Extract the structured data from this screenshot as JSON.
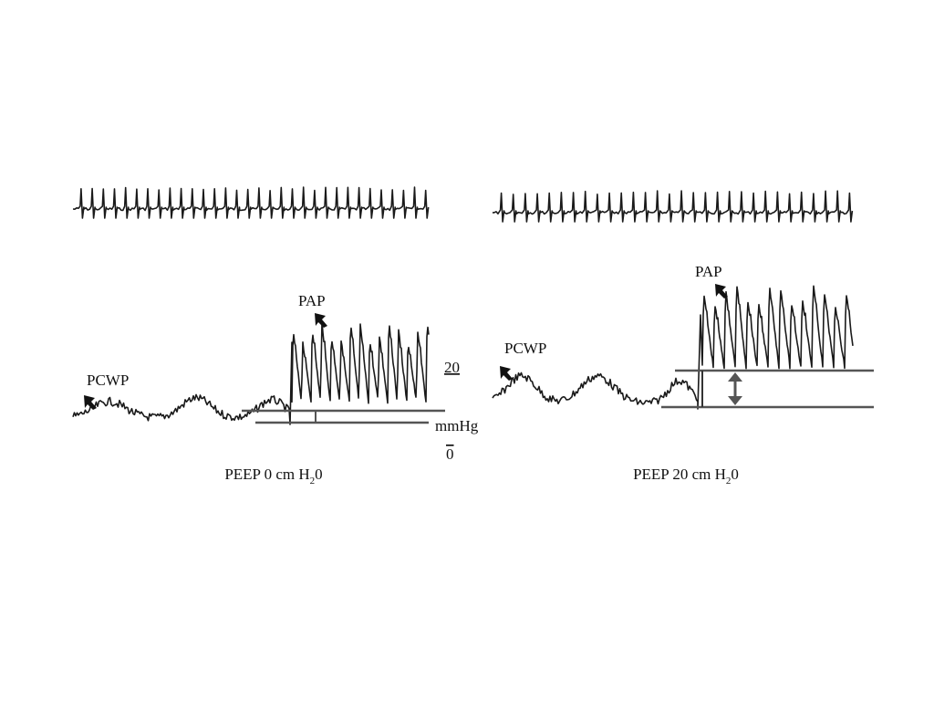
{
  "left": {
    "pcwp_label": "PCWP",
    "pap_label": "PAP",
    "scale": {
      "top": "20",
      "unit": "mmHg",
      "bottom": "0"
    },
    "caption": {
      "text": "PEEP 0 cm H",
      "sub": "2",
      "tail": "0"
    }
  },
  "right": {
    "pcwp_label": "PCWP",
    "pap_label": "PAP",
    "caption": {
      "text": "PEEP 20 cm H",
      "sub": "2",
      "tail": "0"
    }
  }
}
